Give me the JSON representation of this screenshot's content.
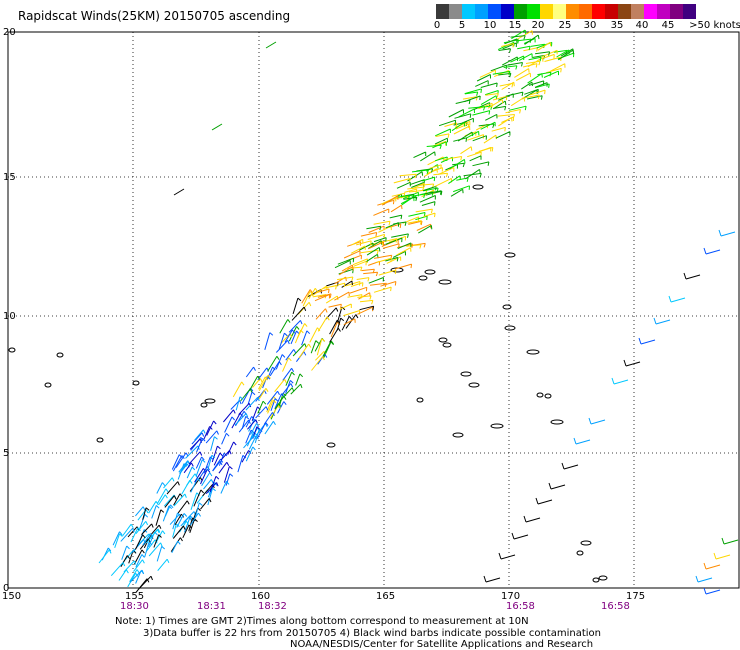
{
  "title": "Rapidscat Winds(25KM) 20150705 ascending",
  "colorbar": {
    "colors": [
      "#3a3a3a",
      "#8a8a8a",
      "#00c8ff",
      "#00a0ff",
      "#0050ff",
      "#0000c8",
      "#00a000",
      "#00e000",
      "#ffd700",
      "#ffff80",
      "#ff8c00",
      "#ff6a00",
      "#ff0000",
      "#c80000",
      "#8b4513",
      "#c08060",
      "#ff00ff",
      "#c000c0",
      "#800080",
      "#400080"
    ],
    "labels": [
      "0",
      "5",
      "10",
      "15",
      "20",
      "25",
      "30",
      "35",
      "40",
      "45",
      ">50 knots"
    ]
  },
  "axes": {
    "lat_labels": [
      "20",
      "15",
      "10",
      "5",
      "0"
    ],
    "lon_labels": [
      "150",
      "155",
      "160",
      "165",
      "170",
      "175"
    ]
  },
  "times": [
    "18:30",
    "18:31",
    "18:32",
    "16:58",
    "16:58"
  ],
  "notes": {
    "line1": "Note: 1) Times are GMT 2)Times along bottom correspond to measurement at 10N",
    "line2": "3)Data buffer is 22 hrs from 20150705 4) Black wind barbs indicate possible contamination",
    "line3": "NOAA/NESDIS/Center for Satellite Applications and Research"
  }
}
